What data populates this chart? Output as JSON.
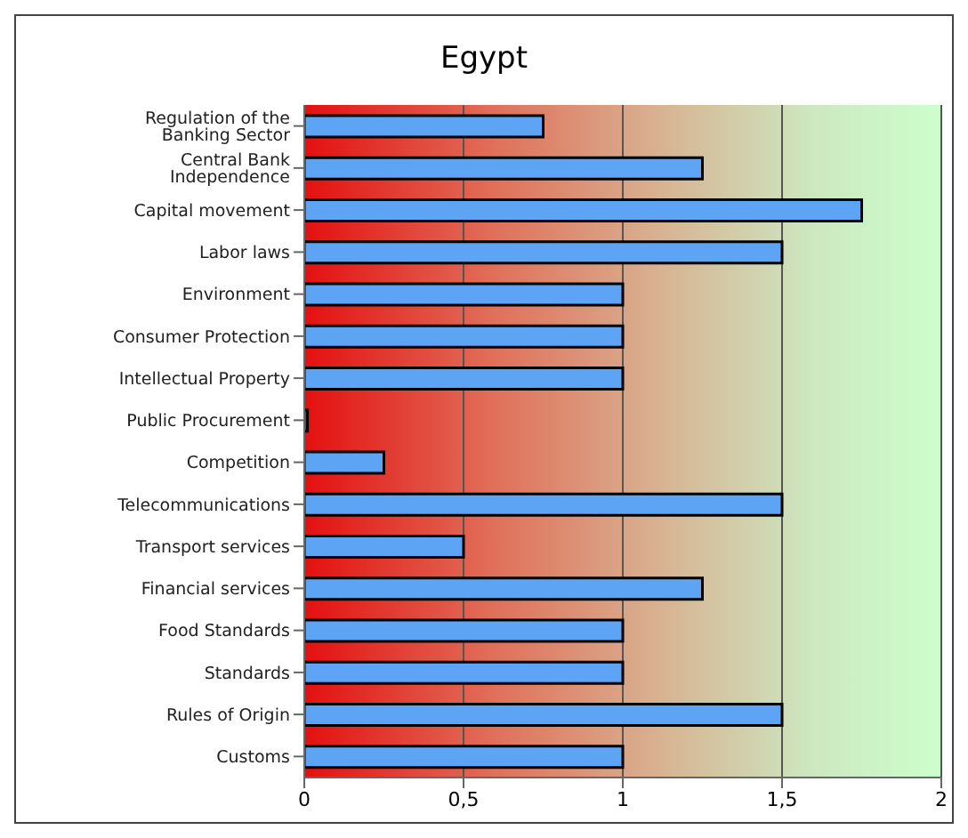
{
  "chart_data": {
    "type": "bar",
    "orientation": "horizontal",
    "title": "Egypt",
    "categories": [
      "Regulation of the Banking Sector",
      "Central Bank Independence",
      "Capital movement",
      "Labor laws",
      "Environment",
      "Consumer Protection",
      "Intellectual Property",
      "Public Procurement",
      "Competition",
      "Telecommunications",
      "Transport services",
      "Financial services",
      "Food Standards",
      "Standards",
      "Rules of Origin",
      "Customs"
    ],
    "values": [
      0.75,
      1.25,
      1.75,
      1.5,
      1,
      1,
      1,
      0.01,
      0.25,
      1.5,
      0.5,
      1.25,
      1,
      1,
      1.5,
      1
    ],
    "color": "#5ea4f5",
    "xlim": [
      0,
      2
    ],
    "xticks": [
      0,
      {
        "value": 0.5,
        "label": "0,5"
      },
      1,
      {
        "value": 1.5,
        "label": "1,5"
      },
      2
    ],
    "grid": "x",
    "legend": false
  }
}
